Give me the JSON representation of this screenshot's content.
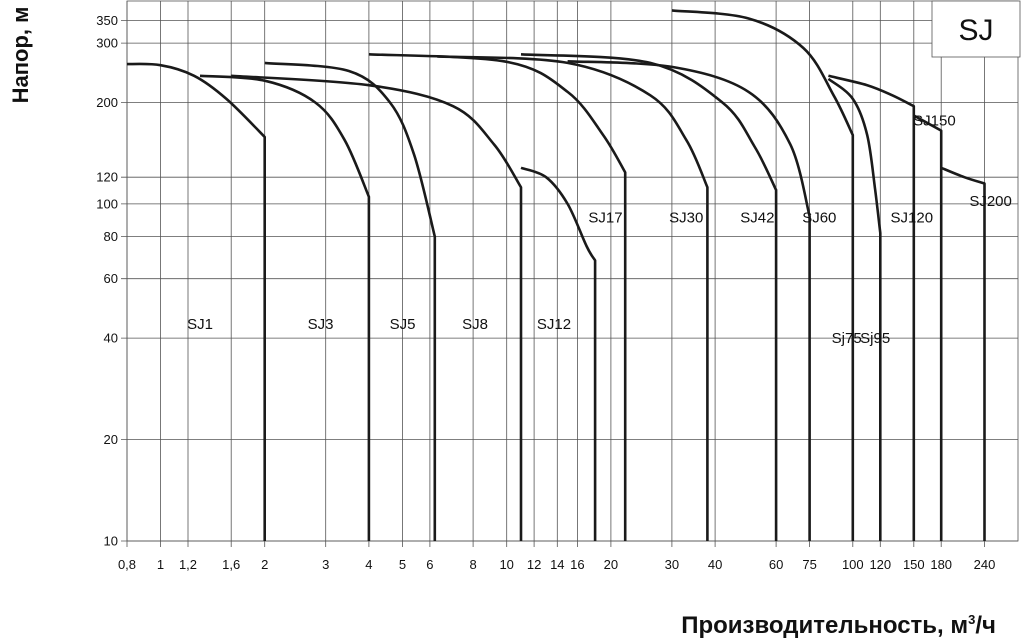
{
  "chart_data": {
    "type": "line",
    "title": "SJ",
    "ylabel": "Напор, м",
    "xlabel": "Производительность, м",
    "xlabel_sup": "3",
    "xlabel_unit_suffix": "/ч",
    "x_scale": "log",
    "y_scale": "log",
    "xlim": [
      0.8,
      300
    ],
    "ylim": [
      10,
      400
    ],
    "grid": true,
    "x_ticks": [
      {
        "v": 0.8,
        "label": "0,8"
      },
      {
        "v": 1,
        "label": "1"
      },
      {
        "v": 1.2,
        "label": "1,2"
      },
      {
        "v": 1.6,
        "label": "1,6"
      },
      {
        "v": 2,
        "label": "2"
      },
      {
        "v": 3,
        "label": "3"
      },
      {
        "v": 4,
        "label": "4"
      },
      {
        "v": 5,
        "label": "5"
      },
      {
        "v": 6,
        "label": "6"
      },
      {
        "v": 8,
        "label": "8"
      },
      {
        "v": 10,
        "label": "10"
      },
      {
        "v": 12,
        "label": "12"
      },
      {
        "v": 14,
        "label": "14"
      },
      {
        "v": 16,
        "label": "16"
      },
      {
        "v": 20,
        "label": "20"
      },
      {
        "v": 30,
        "label": "30"
      },
      {
        "v": 40,
        "label": "40"
      },
      {
        "v": 60,
        "label": "60"
      },
      {
        "v": 75,
        "label": "75"
      },
      {
        "v": 100,
        "label": "100"
      },
      {
        "v": 120,
        "label": "120"
      },
      {
        "v": 150,
        "label": "150"
      },
      {
        "v": 180,
        "label": "180"
      },
      {
        "v": 240,
        "label": "240"
      }
    ],
    "y_ticks": [
      {
        "v": 10,
        "label": "10"
      },
      {
        "v": 20,
        "label": "20"
      },
      {
        "v": 40,
        "label": "40"
      },
      {
        "v": 60,
        "label": "60"
      },
      {
        "v": 80,
        "label": "80"
      },
      {
        "v": 100,
        "label": "100"
      },
      {
        "v": 120,
        "label": "120"
      },
      {
        "v": 200,
        "label": "200"
      },
      {
        "v": 300,
        "label": "300"
      },
      {
        "v": 350,
        "label": "350"
      }
    ],
    "series": [
      {
        "name": "SJ1",
        "label_at": [
          1.3,
          44
        ],
        "points": [
          [
            0.8,
            260
          ],
          [
            1.0,
            258
          ],
          [
            1.25,
            240
          ],
          [
            1.55,
            205
          ],
          [
            2.0,
            158
          ],
          [
            2.0,
            10
          ]
        ]
      },
      {
        "name": "SJ3",
        "label_at": [
          2.9,
          44
        ],
        "points": [
          [
            1.3,
            240
          ],
          [
            2.0,
            232
          ],
          [
            2.8,
            200
          ],
          [
            3.4,
            155
          ],
          [
            4.0,
            105
          ],
          [
            4.0,
            10
          ]
        ]
      },
      {
        "name": "SJ5",
        "label_at": [
          5.0,
          44
        ],
        "points": [
          [
            2.0,
            262
          ],
          [
            3.5,
            248
          ],
          [
            4.6,
            200
          ],
          [
            5.4,
            140
          ],
          [
            6.2,
            80
          ],
          [
            6.2,
            10
          ]
        ]
      },
      {
        "name": "SJ8",
        "label_at": [
          8.1,
          44
        ],
        "points": [
          [
            1.6,
            240
          ],
          [
            4.0,
            225
          ],
          [
            7.0,
            195
          ],
          [
            9.2,
            150
          ],
          [
            11.0,
            112
          ],
          [
            11.0,
            10
          ]
        ]
      },
      {
        "name": "SJ12",
        "label_at": [
          13.7,
          44
        ],
        "points": [
          [
            11.0,
            128
          ],
          [
            13.0,
            120
          ],
          [
            15.0,
            100
          ],
          [
            17.0,
            75
          ],
          [
            18.0,
            68
          ],
          [
            18.0,
            10
          ]
        ]
      },
      {
        "name": "SJ17",
        "label_at": [
          19.3,
          91
        ],
        "points": [
          [
            4.0,
            278
          ],
          [
            10.0,
            264
          ],
          [
            15.0,
            215
          ],
          [
            19.0,
            160
          ],
          [
            22.0,
            124
          ],
          [
            22.0,
            10
          ]
        ]
      },
      {
        "name": "SJ30",
        "label_at": [
          33,
          91
        ],
        "points": [
          [
            6.3,
            274
          ],
          [
            15.0,
            262
          ],
          [
            26.0,
            210
          ],
          [
            33.0,
            155
          ],
          [
            38.0,
            112
          ],
          [
            38.0,
            10
          ]
        ]
      },
      {
        "name": "SJ42",
        "label_at": [
          53,
          91
        ],
        "points": [
          [
            11.0,
            278
          ],
          [
            26.0,
            262
          ],
          [
            42.0,
            200
          ],
          [
            52.0,
            148
          ],
          [
            60.0,
            110
          ],
          [
            60.0,
            10
          ]
        ]
      },
      {
        "name": "SJ60",
        "label_at": [
          80,
          91
        ],
        "points": [
          [
            15.0,
            265
          ],
          [
            30.0,
            255
          ],
          [
            50.0,
            215
          ],
          [
            66.0,
            150
          ],
          [
            75.0,
            92
          ],
          [
            75.0,
            10
          ]
        ]
      },
      {
        "name": "Sj75",
        "label_at": [
          96,
          40
        ],
        "points": [
          [
            30.0,
            375
          ],
          [
            50.0,
            355
          ],
          [
            72.0,
            290
          ],
          [
            88.0,
            210
          ],
          [
            100.0,
            160
          ],
          [
            100.0,
            10
          ]
        ]
      },
      {
        "name": "Sj95",
        "label_at": [
          116,
          40
        ],
        "points": [
          [
            85.0,
            235
          ],
          [
            100.0,
            205
          ],
          [
            110.0,
            160
          ],
          [
            116.0,
            110
          ],
          [
            120.0,
            82
          ],
          [
            120.0,
            10
          ]
        ]
      },
      {
        "name": "SJ120",
        "label_at": [
          148,
          91
        ],
        "points": [
          [
            85.0,
            240
          ],
          [
            110.0,
            225
          ],
          [
            130.0,
            210
          ],
          [
            150.0,
            195
          ],
          [
            150.0,
            10
          ]
        ]
      },
      {
        "name": "SJ150",
        "label_at": [
          172,
          177
        ],
        "points": [
          [
            150.0,
            183
          ],
          [
            180.0,
            165
          ],
          [
            180.0,
            10
          ]
        ]
      },
      {
        "name": "SJ200",
        "label_at": [
          250,
          102
        ],
        "points": [
          [
            180.0,
            128
          ],
          [
            210.0,
            120
          ],
          [
            240.0,
            115
          ],
          [
            240.0,
            10
          ]
        ]
      }
    ]
  }
}
